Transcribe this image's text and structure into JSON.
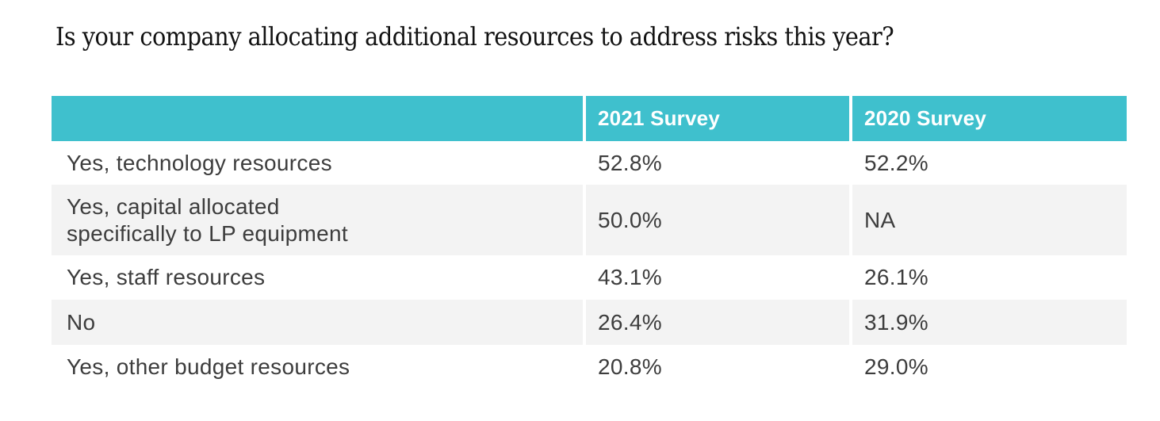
{
  "title": "Is your company allocating additional resources to address risks this year?",
  "table": {
    "header": {
      "col1": "",
      "col2": "2021 Survey",
      "col3": "2020 Survey"
    },
    "rows": [
      {
        "label": "Yes, technology resources",
        "v2021": "52.8%",
        "v2020": "52.2%"
      },
      {
        "label": "Yes, capital allocated\nspecifically to LP equipment",
        "v2021": "50.0%",
        "v2020": "NA"
      },
      {
        "label": "Yes, staff resources",
        "v2021": "43.1%",
        "v2020": "26.1%"
      },
      {
        "label": "No",
        "v2021": "26.4%",
        "v2020": "31.9%"
      },
      {
        "label": "Yes, other budget resources",
        "v2021": "20.8%",
        "v2020": "29.0%"
      }
    ]
  },
  "colors": {
    "header_bg": "#3fc0cd",
    "header_text": "#ffffff",
    "alt_row_bg": "#f3f3f3",
    "body_text": "#3d3d3d",
    "title_text": "#121212"
  },
  "chart_data": {
    "type": "table",
    "title": "Is your company allocating additional resources to address risks this year?",
    "columns": [
      "2021 Survey",
      "2020 Survey"
    ],
    "categories": [
      "Yes, technology resources",
      "Yes, capital allocated specifically to LP equipment",
      "Yes, staff resources",
      "No",
      "Yes, other budget resources"
    ],
    "series": [
      {
        "name": "2021 Survey",
        "values": [
          52.8,
          50.0,
          43.1,
          26.4,
          20.8
        ]
      },
      {
        "name": "2020 Survey",
        "values": [
          52.2,
          null,
          26.1,
          31.9,
          29.0
        ]
      }
    ],
    "value_format": "percent",
    "na_display": "NA"
  }
}
